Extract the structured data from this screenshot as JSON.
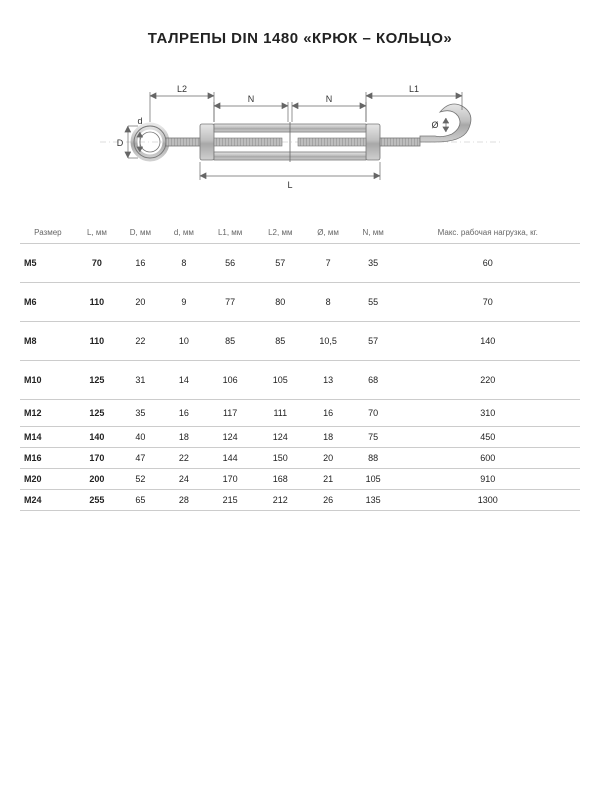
{
  "title": "ТАЛРЕПЫ DIN 1480 «КРЮК – КОЛЬЦО»",
  "diagram": {
    "labels": {
      "L": "L",
      "L1": "L1",
      "L2": "L2",
      "N": "N",
      "D": "D",
      "d": "d",
      "phi": "Ø"
    },
    "colors": {
      "stroke": "#888888",
      "fill_light": "#d8d8d8",
      "fill_mid": "#bcbcbc",
      "fill_dark": "#9a9a9a",
      "dim_line": "#666666",
      "text": "#333333"
    }
  },
  "table": {
    "columns": [
      "Размер",
      "L, мм",
      "D, мм",
      "d, мм",
      "L1, мм",
      "L2, мм",
      "Ø, мм",
      "N, мм",
      "Макс. рабочая нагрузка, кг."
    ],
    "rows": [
      {
        "h": "tall",
        "cells": [
          "M5",
          "70",
          "16",
          "8",
          "56",
          "57",
          "7",
          "35",
          "60"
        ]
      },
      {
        "h": "tall",
        "cells": [
          "M6",
          "110",
          "20",
          "9",
          "77",
          "80",
          "8",
          "55",
          "70"
        ]
      },
      {
        "h": "tall",
        "cells": [
          "M8",
          "110",
          "22",
          "10",
          "85",
          "85",
          "10,5",
          "57",
          "140"
        ]
      },
      {
        "h": "tall",
        "cells": [
          "M10",
          "125",
          "31",
          "14",
          "106",
          "105",
          "13",
          "68",
          "220"
        ]
      },
      {
        "h": "med",
        "cells": [
          "M12",
          "125",
          "35",
          "16",
          "117",
          "111",
          "16",
          "70",
          "310"
        ]
      },
      {
        "h": "slim",
        "cells": [
          "M14",
          "140",
          "40",
          "18",
          "124",
          "124",
          "18",
          "75",
          "450"
        ]
      },
      {
        "h": "slim",
        "cells": [
          "M16",
          "170",
          "47",
          "22",
          "144",
          "150",
          "20",
          "88",
          "600"
        ]
      },
      {
        "h": "slim",
        "cells": [
          "M20",
          "200",
          "52",
          "24",
          "170",
          "168",
          "21",
          "105",
          "910"
        ]
      },
      {
        "h": "slim",
        "cells": [
          "M24",
          "255",
          "65",
          "28",
          "215",
          "212",
          "26",
          "135",
          "1300"
        ]
      }
    ]
  }
}
